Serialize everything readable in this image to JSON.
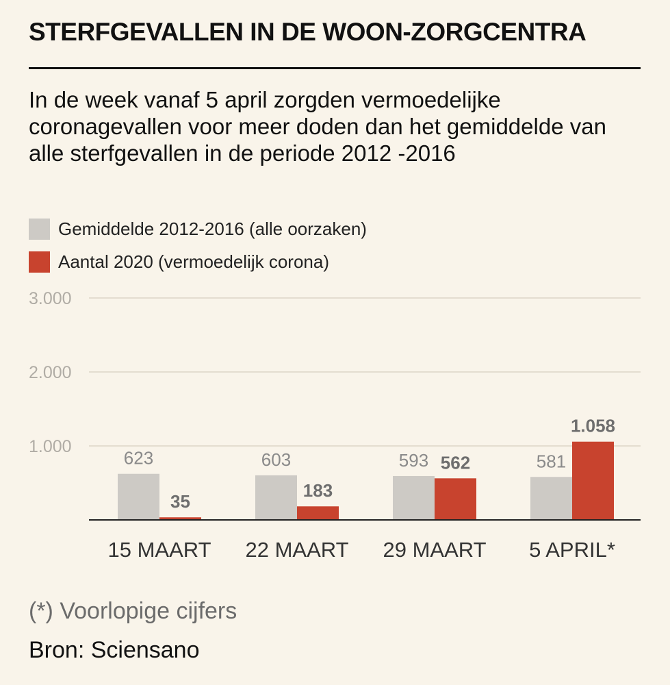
{
  "chart_data": {
    "type": "bar",
    "title": "STERFGEVALLEN IN DE WOON-ZORGCENTRA",
    "subtitle": "In de week vanaf 5 april zorgden vermoedelijke coronagevallen voor meer doden dan het gemiddelde van alle sterfgevallen in de periode 2012 -2016",
    "categories": [
      "15 MAART",
      "22 MAART",
      "29 MAART",
      "5 APRIL*"
    ],
    "series": [
      {
        "name": "Gemiddelde 2012-2016 (alle oorzaken)",
        "color": "#cdcac5",
        "label_color": "#8a8a8a",
        "values": [
          623,
          603,
          593,
          581
        ],
        "value_labels": [
          "623",
          "603",
          "593",
          "581"
        ]
      },
      {
        "name": "Aantal 2020 (vermoedelijk corona)",
        "color": "#c8432e",
        "label_color": "#6e6e6e",
        "values": [
          35,
          183,
          562,
          1058
        ],
        "value_labels": [
          "35",
          "183",
          "562",
          "1.058"
        ]
      }
    ],
    "ylim": [
      0,
      3000
    ],
    "yticks": [
      1000,
      2000,
      3000
    ],
    "ytick_labels": [
      "1.000",
      "2.000",
      "3.000"
    ],
    "xlabel": "",
    "ylabel": "",
    "grid": true,
    "legend": "top-left"
  },
  "footnote": "(*) Voorlopige cijfers",
  "source": "Bron: Sciensano",
  "colors": {
    "background": "#f9f4ea",
    "gridline": "#e4ddd0",
    "axis": "#222222",
    "tick_label": "#b0aca5",
    "category_label": "#333333"
  }
}
